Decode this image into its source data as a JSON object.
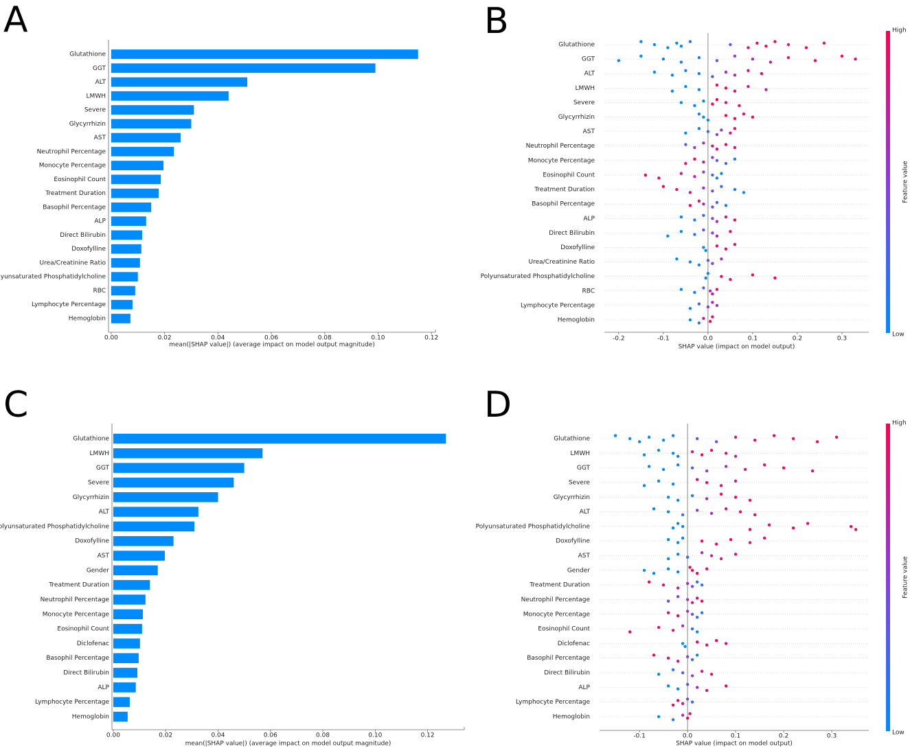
{
  "chart_data": [
    {
      "type": "bar",
      "panel": "A",
      "color": "#008bfb",
      "categories": [
        "Glutathione",
        "GGT",
        "ALT",
        "LMWH",
        "Severe",
        "Glycyrrhizin",
        "AST",
        "Neutrophil Percentage",
        "Monocyte Percentage",
        "Eosinophil Count",
        "Treatment Duration",
        "Basophil Percentage",
        "ALP",
        "Direct Bilirubin",
        "Doxofylline",
        "Urea/Creatinine Ratio",
        "Polyunsaturated Phosphatidylcholine",
        "RBC",
        "Lymphocyte Percentage",
        "Hemoglobin"
      ],
      "values": [
        0.115,
        0.099,
        0.051,
        0.044,
        0.031,
        0.03,
        0.026,
        0.0235,
        0.0196,
        0.0186,
        0.0178,
        0.015,
        0.0131,
        0.0116,
        0.0113,
        0.0108,
        0.01,
        0.009,
        0.008,
        0.0072
      ],
      "xlim": [
        -0.001,
        0.1215
      ],
      "xticks": [
        {
          "value": 0,
          "label": "0.00"
        },
        {
          "value": 0.02,
          "label": "0.02"
        },
        {
          "value": 0.04,
          "label": "0.04"
        },
        {
          "value": 0.06,
          "label": "0.06"
        },
        {
          "value": 0.08,
          "label": "0.08"
        },
        {
          "value": 0.1,
          "label": "0.10"
        },
        {
          "value": 0.12,
          "label": "0.12"
        }
      ],
      "xlabel": "mean(|SHAP value|) (average impact on model output magnitude)"
    },
    {
      "type": "beeswarm",
      "panel": "B",
      "categories": [
        "Glutathione",
        "GGT",
        "ALT",
        "LMWH",
        "Severe",
        "Glycyrrhizin",
        "AST",
        "Neutrophil Percentage",
        "Monocyte Percentage",
        "Eosinophil Count",
        "Treatment Duration",
        "Basophil Percentage",
        "ALP",
        "Direct Bilirubin",
        "Doxofylline",
        "Urea/Creatinine Ratio",
        "Polyunsaturated Phosphatidylcholine",
        "RBC",
        "Lymphocyte Percentage",
        "Hemoglobin"
      ],
      "values": [
        [
          -0.15,
          -0.12,
          -0.09,
          -0.07,
          -0.06,
          -0.04,
          0.05,
          0.09,
          0.11,
          0.13,
          0.15,
          0.18,
          0.22,
          0.26
        ],
        [
          -0.2,
          -0.15,
          -0.1,
          -0.06,
          -0.02,
          0.02,
          0.06,
          0.1,
          0.14,
          0.18,
          0.24,
          0.3,
          0.33
        ],
        [
          -0.12,
          -0.08,
          -0.05,
          -0.02,
          0.01,
          0.04,
          0.06,
          0.09,
          0.12
        ],
        [
          -0.08,
          -0.05,
          -0.02,
          0.02,
          0.04,
          0.06,
          0.09,
          0.13
        ],
        [
          -0.06,
          -0.03,
          -0.01,
          0.01,
          0.02,
          0.04,
          0.07
        ],
        [
          -0.02,
          -0.01,
          0,
          0.04,
          0.06,
          0.08,
          0.1
        ],
        [
          -0.05,
          -0.02,
          0,
          0.02,
          0.03,
          0.05,
          0.06
        ],
        [
          -0.05,
          -0.03,
          -0.01,
          0.01,
          0.02,
          0.04,
          0.06
        ],
        [
          -0.05,
          -0.03,
          -0.01,
          0.01,
          0.02,
          0.04,
          0.06
        ],
        [
          -0.14,
          -0.11,
          -0.06,
          -0.03,
          -0.01,
          0.01,
          0.02,
          0.03
        ],
        [
          -0.1,
          -0.07,
          -0.04,
          -0.01,
          0.01,
          0.03,
          0.06,
          0.08
        ],
        [
          -0.04,
          -0.02,
          -0.01,
          0.01,
          0.02,
          0.04
        ],
        [
          -0.06,
          -0.03,
          -0.01,
          0.01,
          0.02,
          0.04,
          0.06
        ],
        [
          -0.09,
          -0.06,
          -0.03,
          -0.01,
          0.01,
          0.02,
          0.05
        ],
        [
          -0.01,
          -0.005,
          0.02,
          0.04,
          0.06
        ],
        [
          -0.07,
          -0.04,
          -0.02,
          0,
          0.01,
          0.03
        ],
        [
          -0.005,
          0,
          0.03,
          0.05,
          0.1,
          0.15
        ],
        [
          -0.06,
          -0.03,
          -0.01,
          0.005,
          0.01,
          0.02
        ],
        [
          -0.04,
          -0.02,
          0,
          0.01,
          0.02
        ],
        [
          -0.04,
          -0.02,
          -0.01,
          0.005,
          0.01
        ]
      ],
      "feature_values": [
        [
          0,
          0,
          0,
          0,
          0,
          0.1,
          0.3,
          0.9,
          1,
          0.9,
          1,
          0.8,
          1,
          0.9
        ],
        [
          0,
          0,
          0,
          0.1,
          0.1,
          0.3,
          0.5,
          0.6,
          0.8,
          0.9,
          1,
          1,
          0.9
        ],
        [
          0,
          0,
          0.1,
          0.1,
          0.3,
          0.6,
          0.7,
          0.9,
          1
        ],
        [
          0,
          0,
          0,
          1,
          1,
          0.9,
          0.8,
          0.7
        ],
        [
          0,
          0,
          0,
          1,
          1,
          0.9,
          0.9
        ],
        [
          0,
          0,
          0,
          1,
          1,
          0.9,
          1
        ],
        [
          0,
          0.1,
          0.2,
          0.5,
          0.6,
          0.8,
          0.9
        ],
        [
          0.3,
          0.5,
          0.6,
          0.8,
          0.9,
          1,
          0.9
        ],
        [
          0.9,
          1,
          0.8,
          0.5,
          0.3,
          0.2,
          0.1
        ],
        [
          1,
          0.9,
          0.8,
          0.7,
          0.5,
          0.2,
          0.1,
          0
        ],
        [
          1,
          0.9,
          0.8,
          0.6,
          0.4,
          0.2,
          0.1,
          0
        ],
        [
          1,
          0.9,
          0.7,
          0.4,
          0.2,
          0.1
        ],
        [
          0,
          0.1,
          0.2,
          0.5,
          0.6,
          0.8,
          1
        ],
        [
          0,
          0,
          0.1,
          0.3,
          0.5,
          0.7,
          0.9
        ],
        [
          0,
          0,
          1,
          1,
          0.9
        ],
        [
          0,
          0,
          0.1,
          0.3,
          0.5,
          0.6
        ],
        [
          0,
          0,
          1,
          0.9,
          1,
          1
        ],
        [
          0,
          0.1,
          0.2,
          0.6,
          0.8,
          0.9
        ],
        [
          0,
          0.2,
          0.5,
          0.7,
          0.6
        ],
        [
          0,
          0.2,
          0.8,
          1,
          0.9
        ]
      ],
      "xlim": [
        -0.232,
        0.36
      ],
      "xticks": [
        -0.2,
        -0.1,
        {
          "value": 0,
          "label": "0.0"
        },
        0.1,
        0.2,
        0.3
      ],
      "xlabel": "SHAP value (impact on model output)",
      "colorbar": {
        "label": "Feature value",
        "high": "High",
        "low": "Low",
        "colors": [
          "#008bfb",
          "#8a3cdf",
          "#ff0052"
        ]
      }
    },
    {
      "type": "bar",
      "panel": "C",
      "color": "#008bfb",
      "categories": [
        "Glutathione",
        "LMWH",
        "GGT",
        "Severe",
        "Glycyrrhizin",
        "ALT",
        "Polyunsaturated Phosphatidylcholine",
        "Doxofylline",
        "AST",
        "Gender",
        "Treatment Duration",
        "Neutrophil Percentage",
        "Monocyte Percentage",
        "Eosinophil Count",
        "Diclofenac",
        "Basophil Percentage",
        "Direct Bilirubin",
        "ALP",
        "Lymphocyte Percentage",
        "Hemoglobin"
      ],
      "values": [
        0.127,
        0.057,
        0.05,
        0.046,
        0.04,
        0.0325,
        0.031,
        0.023,
        0.0197,
        0.017,
        0.014,
        0.0123,
        0.0113,
        0.011,
        0.0102,
        0.0097,
        0.0092,
        0.0086,
        0.0063,
        0.0055
      ],
      "xlim": [
        -0.0005,
        0.134
      ],
      "xticks": [
        {
          "value": 0,
          "label": "0.00"
        },
        {
          "value": 0.02,
          "label": "0.02"
        },
        {
          "value": 0.04,
          "label": "0.04"
        },
        {
          "value": 0.06,
          "label": "0.06"
        },
        {
          "value": 0.08,
          "label": "0.08"
        },
        {
          "value": 0.1,
          "label": "0.10"
        },
        {
          "value": 0.12,
          "label": "0.12"
        }
      ],
      "xlabel": "mean(|SHAP value|) (average impact on model output magnitude)"
    },
    {
      "type": "beeswarm",
      "panel": "D",
      "categories": [
        "Glutathione",
        "LMWH",
        "GGT",
        "Severe",
        "Glycyrrhizin",
        "ALT",
        "Polyunsaturated Phosphatidylcholine",
        "Doxofylline",
        "AST",
        "Gender",
        "Treatment Duration",
        "Neutrophil Percentage",
        "Monocyte Percentage",
        "Eosinophil Count",
        "Diclofenac",
        "Basophil Percentage",
        "Direct Bilirubin",
        "ALP",
        "Lymphocyte Percentage",
        "Hemoglobin"
      ],
      "values": [
        [
          -0.15,
          -0.12,
          -0.1,
          -0.08,
          -0.05,
          -0.03,
          0.02,
          0.06,
          0.1,
          0.14,
          0.18,
          0.22,
          0.27,
          0.31
        ],
        [
          -0.09,
          -0.06,
          -0.03,
          -0.02,
          0.01,
          0.03,
          0.05,
          0.08,
          0.1
        ],
        [
          -0.08,
          -0.05,
          -0.02,
          0.01,
          0.04,
          0.08,
          0.12,
          0.16,
          0.2,
          0.26
        ],
        [
          -0.09,
          -0.06,
          -0.03,
          0.02,
          0.04,
          0.07,
          0.1
        ],
        [
          -0.04,
          -0.02,
          0.01,
          0.04,
          0.07,
          0.1,
          0.13
        ],
        [
          -0.07,
          -0.04,
          -0.01,
          0.02,
          0.05,
          0.08,
          0.11,
          0.14
        ],
        [
          -0.03,
          -0.02,
          -0.01,
          0.13,
          0.17,
          0.22,
          0.25,
          0.34,
          0.35
        ],
        [
          -0.04,
          -0.02,
          -0.01,
          0.03,
          0.06,
          0.09,
          0.13,
          0.16
        ],
        [
          -0.04,
          -0.02,
          0,
          0.03,
          0.05,
          0.07,
          0.1
        ],
        [
          -0.09,
          -0.07,
          -0.04,
          -0.02,
          0.005,
          0.01,
          0.02,
          0.04
        ],
        [
          -0.08,
          -0.05,
          -0.02,
          0,
          0.01,
          0.02,
          0.03
        ],
        [
          -0.04,
          -0.02,
          0,
          0.01,
          0.02,
          0.03
        ],
        [
          -0.04,
          -0.02,
          0,
          0.01,
          0.02,
          0.03
        ],
        [
          -0.12,
          -0.06,
          -0.03,
          -0.01,
          0.01,
          0.02
        ],
        [
          -0.01,
          -0.005,
          0.02,
          0.04,
          0.06,
          0.08
        ],
        [
          -0.07,
          -0.04,
          -0.02,
          0,
          0.01,
          0.02
        ],
        [
          -0.06,
          -0.03,
          -0.01,
          0.01,
          0.03,
          0.05
        ],
        [
          -0.04,
          -0.02,
          0,
          0.02,
          0.04,
          0.08
        ],
        [
          -0.03,
          -0.02,
          -0.01,
          0,
          0.01
        ],
        [
          -0.06,
          -0.03,
          -0.01,
          0,
          0.005
        ]
      ],
      "feature_values": [
        [
          0,
          0,
          0,
          0,
          0,
          0.1,
          0.3,
          0.4,
          0.8,
          0.9,
          1,
          0.9,
          1,
          0.9
        ],
        [
          0,
          0,
          0,
          0.1,
          0.8,
          1,
          1,
          0.9,
          0.7
        ],
        [
          0,
          0,
          0.1,
          0.3,
          0.5,
          0.6,
          0.8,
          0.9,
          1,
          0.9
        ],
        [
          0,
          0,
          0,
          1,
          1,
          0.9,
          0.8
        ],
        [
          0,
          0,
          0.1,
          0.7,
          0.9,
          1,
          0.9
        ],
        [
          0,
          0.1,
          0.2,
          0.5,
          0.6,
          0.8,
          0.9,
          1
        ],
        [
          0,
          0,
          0,
          1,
          0.9,
          1,
          0.9,
          1,
          1
        ],
        [
          0,
          0,
          0,
          1,
          0.9,
          1,
          0.8,
          0.9
        ],
        [
          0,
          0.1,
          0.2,
          0.6,
          0.7,
          0.8,
          0.9
        ],
        [
          0,
          0,
          0,
          0,
          1,
          1,
          1,
          0.9
        ],
        [
          1,
          0.9,
          0.8,
          0.6,
          0.4,
          0.2,
          0.1
        ],
        [
          0.3,
          0.5,
          0.6,
          0.8,
          0.9,
          1
        ],
        [
          0.9,
          1,
          0.6,
          0.4,
          0.2,
          0.1
        ],
        [
          1,
          0.9,
          0.8,
          0.6,
          0.2,
          0
        ],
        [
          0,
          0,
          1,
          0.9,
          1,
          0.9
        ],
        [
          1,
          0.9,
          0.8,
          0.5,
          0.2,
          0.1
        ],
        [
          0,
          0.1,
          0.3,
          0.5,
          0.8,
          0.9
        ],
        [
          0,
          0.1,
          0.3,
          0.6,
          0.9,
          1
        ],
        [
          0.9,
          1,
          0.8,
          0.4,
          0.2
        ],
        [
          0,
          0.1,
          0.6,
          1,
          0.9
        ]
      ],
      "xlim": [
        -0.183,
        0.377
      ],
      "xticks": [
        -0.1,
        {
          "value": 0,
          "label": "0.0"
        },
        0.1,
        0.2,
        0.3
      ],
      "xlabel": "SHAP value (impact on model output)",
      "colorbar": {
        "label": "Feature value",
        "high": "High",
        "low": "Low",
        "colors": [
          "#008bfb",
          "#8a3cdf",
          "#ff0052"
        ]
      }
    }
  ]
}
